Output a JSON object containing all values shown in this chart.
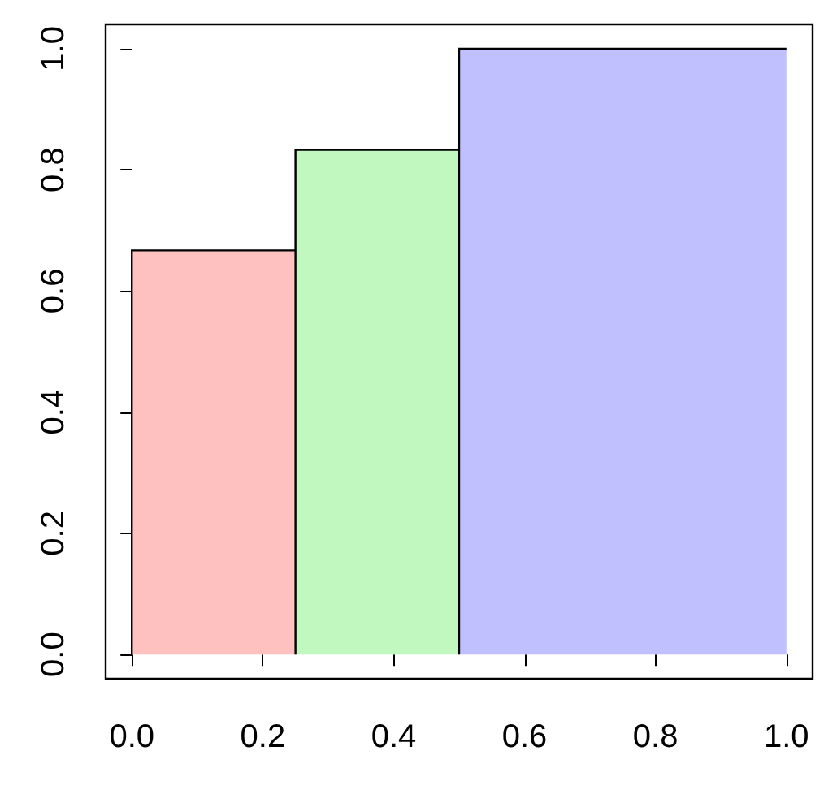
{
  "chart_data": {
    "type": "histogram",
    "bins": [
      0,
      0.25,
      0.5,
      1
    ],
    "values": [
      0.667,
      0.833,
      1
    ],
    "colors": [
      "#ffc0c0",
      "#c0f8c0",
      "#c0c0ff"
    ],
    "xlim": [
      -0.04,
      1.04
    ],
    "ylim": [
      -0.04,
      1.04
    ],
    "xticks": [
      {
        "value": 0,
        "label": "0.0"
      },
      {
        "value": 0.2,
        "label": "0.2"
      },
      {
        "value": 0.4,
        "label": "0.4"
      },
      {
        "value": 0.6,
        "label": "0.6"
      },
      {
        "value": 0.8,
        "label": "0.8"
      },
      {
        "value": 1,
        "label": "1.0"
      }
    ],
    "yticks": [
      {
        "value": 0,
        "label": "0.0"
      },
      {
        "value": 0.2,
        "label": "0.2"
      },
      {
        "value": 0.4,
        "label": "0.4"
      },
      {
        "value": 0.6,
        "label": "0.6"
      },
      {
        "value": 0.8,
        "label": "0.8"
      },
      {
        "value": 1,
        "label": "1.0"
      }
    ]
  }
}
